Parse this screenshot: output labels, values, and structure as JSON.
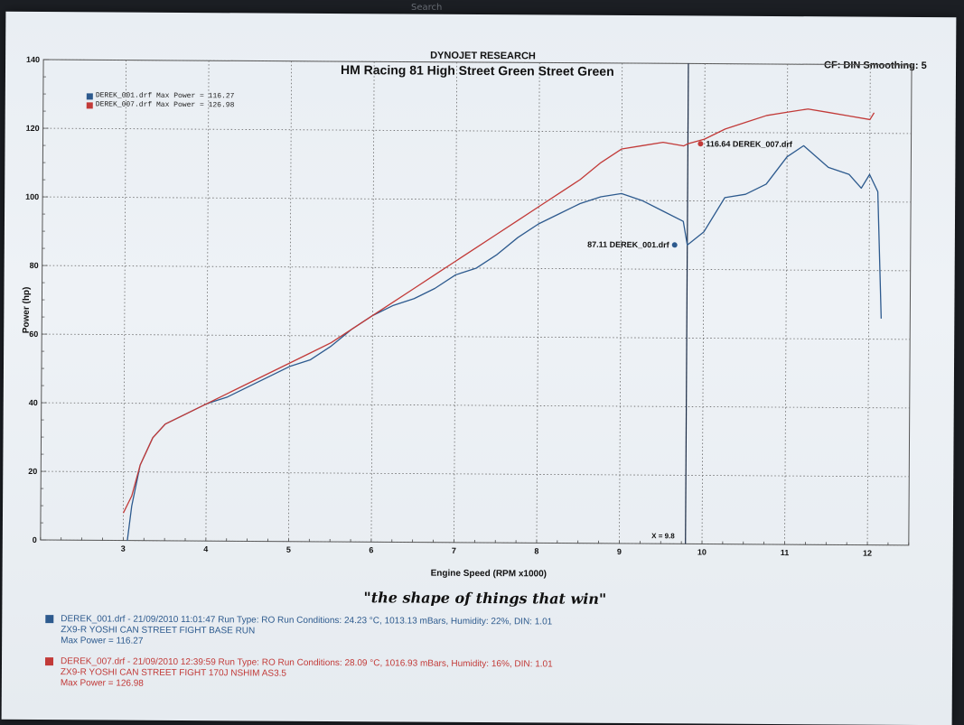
{
  "top_bar": {
    "search_hint": "Search"
  },
  "header": {
    "company": "DYNOJET RESEARCH",
    "shop": "HM Racing 81 High Street Green Street Green",
    "correction": "CF: DIN  Smoothing: 5"
  },
  "tagline": "\"the shape of things that win\"",
  "runs": [
    {
      "color": "#2d5a8e",
      "line1": "DEREK_001.drf - 21/09/2010 11:01:47 Run Type: RO  Run Conditions: 24.23 °C, 1013.13 mBars,  Humidity: 22%, DIN: 1.01",
      "line2": "ZX9-R YOSHI CAN STREET FIGHT BASE  RUN",
      "line3": "Max Power = 116.27"
    },
    {
      "color": "#c23a38",
      "line1": "DEREK_007.drf - 21/09/2010 12:39:59 Run Type: RO  Run Conditions: 28.09 °C, 1016.93 mBars,  Humidity: 16%, DIN: 1.01",
      "line2": "ZX9-R YOSHI CAN STREET FIGHT 170J NSHIM AS3.5",
      "line3": "Max Power = 126.98"
    }
  ],
  "chart_data": {
    "type": "line",
    "xlabel": "Engine Speed (RPM x1000)",
    "ylabel": "Power (hp)",
    "xlim": [
      2,
      12.5
    ],
    "ylim": [
      0,
      140
    ],
    "x_ticks": [
      3,
      4,
      5,
      6,
      7,
      8,
      9,
      10,
      11,
      12
    ],
    "y_ticks": [
      0,
      20,
      40,
      60,
      80,
      100,
      120,
      140
    ],
    "grid": true,
    "legend": "top-left",
    "cursor": {
      "x": 9.8,
      "label": "X = 9.8"
    },
    "annotations": [
      {
        "series": "DEREK_001.drf",
        "x": 9.8,
        "y": 87.11,
        "label": "87.11 DEREK_001.drf"
      },
      {
        "series": "DEREK_007.drf",
        "x": 9.8,
        "y": 116.64,
        "label": "116.64 DEREK_007.drf"
      }
    ],
    "series": [
      {
        "name": "DEREK_001.drf Max Power = 116.27",
        "color": "#2d5a8e",
        "x": [
          3.05,
          3.1,
          3.2,
          3.35,
          3.5,
          3.75,
          4.0,
          4.25,
          4.5,
          4.75,
          5.0,
          5.25,
          5.5,
          5.75,
          6.0,
          6.25,
          6.5,
          6.75,
          7.0,
          7.25,
          7.5,
          7.75,
          8.0,
          8.25,
          8.5,
          8.75,
          9.0,
          9.25,
          9.5,
          9.75,
          9.8,
          10.0,
          10.25,
          10.5,
          10.75,
          11.0,
          11.2,
          11.5,
          11.75,
          11.9,
          12.0,
          12.1,
          12.15
        ],
        "y": [
          0,
          10,
          22,
          30,
          34,
          37,
          40,
          42,
          45,
          48,
          51,
          53,
          57,
          62,
          66,
          69,
          71,
          74,
          78,
          80,
          84,
          89,
          93,
          96,
          99,
          101,
          102,
          100,
          97,
          94,
          87.11,
          91,
          101,
          102,
          105,
          113,
          116.27,
          110,
          108,
          104,
          108,
          103,
          66
        ]
      },
      {
        "name": "DEREK_007.drf Max Power = 126.98",
        "color": "#c23a38",
        "x": [
          3.0,
          3.1,
          3.2,
          3.35,
          3.5,
          3.75,
          4.0,
          4.25,
          4.5,
          4.75,
          5.0,
          5.25,
          5.5,
          5.75,
          6.0,
          6.25,
          6.5,
          6.75,
          7.0,
          7.25,
          7.5,
          7.75,
          8.0,
          8.25,
          8.5,
          8.75,
          9.0,
          9.25,
          9.5,
          9.75,
          9.8,
          10.0,
          10.25,
          10.5,
          10.75,
          11.0,
          11.25,
          11.5,
          11.75,
          12.0,
          12.05
        ],
        "y": [
          8,
          13,
          22,
          30,
          34,
          37,
          40,
          43,
          46,
          49,
          52,
          55,
          58,
          62,
          66,
          70,
          74,
          78,
          82,
          86,
          90,
          94,
          98,
          102,
          106,
          111,
          115,
          116,
          117,
          116,
          116.64,
          118,
          121,
          123,
          125,
          126,
          126.98,
          126,
          125,
          124,
          126
        ]
      }
    ]
  }
}
